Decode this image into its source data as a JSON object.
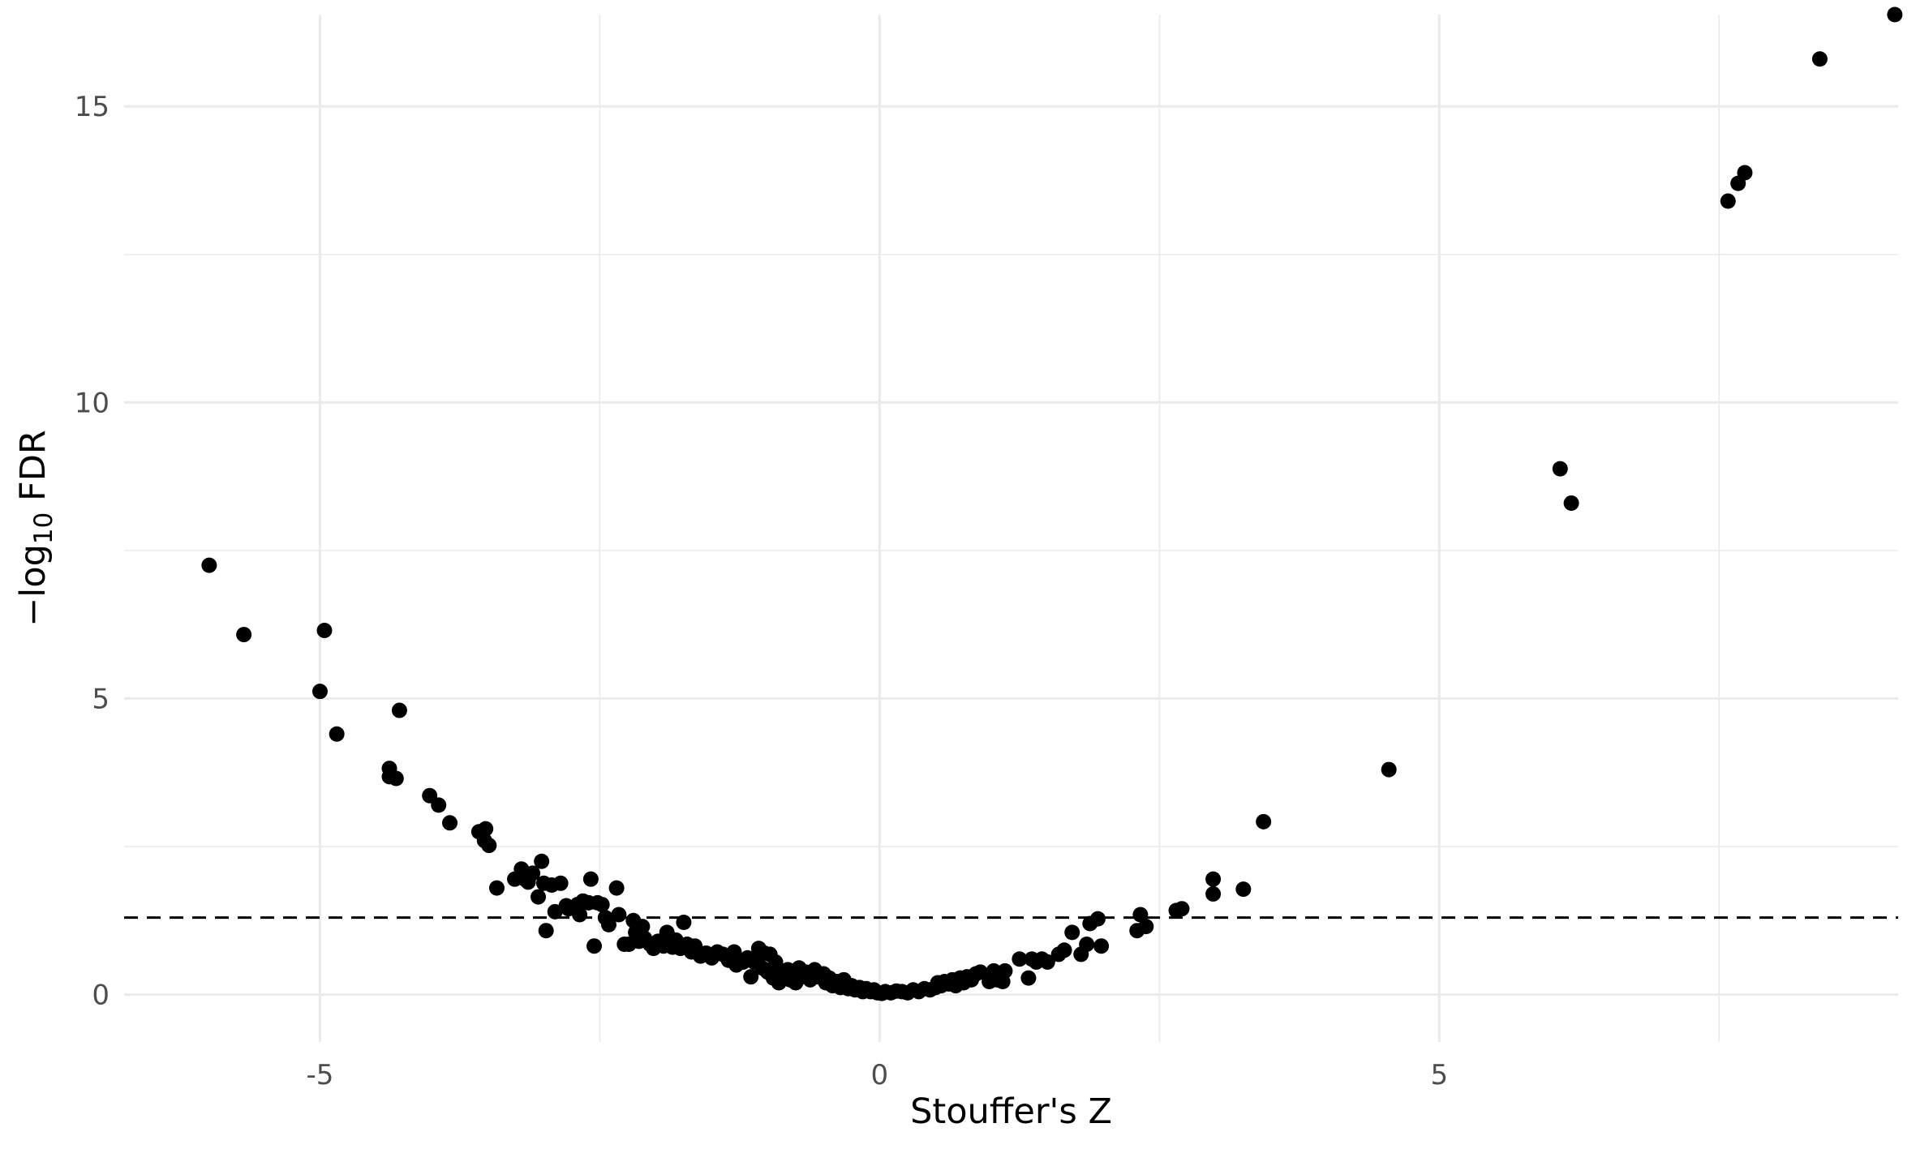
{
  "chart_data": {
    "type": "scatter",
    "title": "",
    "xlabel": "Stouffer's Z",
    "ylabel": {
      "prefix": "−log",
      "subscript": "10",
      "suffix": " FDR"
    },
    "xlim": [
      -6.75,
      9.1
    ],
    "ylim": [
      -0.8,
      16.55
    ],
    "x_ticks": [
      -5,
      0,
      5
    ],
    "x_tick_labels": [
      "-5",
      "0",
      "5"
    ],
    "x_minor_ticks": [
      -2.5,
      2.5,
      7.5
    ],
    "y_ticks": [
      0,
      5,
      10,
      15
    ],
    "y_tick_labels": [
      "0",
      "5",
      "10",
      "15"
    ],
    "y_minor_ticks": [
      2.5,
      7.5,
      12.5
    ],
    "grid": true,
    "legend": "none",
    "reference_line": {
      "orientation": "horizontal",
      "y": 1.3,
      "style": "dashed"
    },
    "point_color": "#000000",
    "points": [
      {
        "x": -5.99,
        "y": 7.25
      },
      {
        "x": -5.68,
        "y": 6.08
      },
      {
        "x": -4.96,
        "y": 6.15
      },
      {
        "x": -5.0,
        "y": 5.12
      },
      {
        "x": -4.85,
        "y": 4.4
      },
      {
        "x": -4.29,
        "y": 4.8
      },
      {
        "x": -4.38,
        "y": 3.82
      },
      {
        "x": -4.38,
        "y": 3.68
      },
      {
        "x": -4.32,
        "y": 3.65
      },
      {
        "x": -4.02,
        "y": 3.36
      },
      {
        "x": -3.94,
        "y": 3.2
      },
      {
        "x": -3.84,
        "y": 2.9
      },
      {
        "x": -3.58,
        "y": 2.75
      },
      {
        "x": -3.52,
        "y": 2.8
      },
      {
        "x": -3.53,
        "y": 2.6
      },
      {
        "x": -3.49,
        "y": 2.52
      },
      {
        "x": -3.42,
        "y": 1.8
      },
      {
        "x": -3.26,
        "y": 1.95
      },
      {
        "x": -3.2,
        "y": 2.12
      },
      {
        "x": -3.17,
        "y": 1.95
      },
      {
        "x": -3.14,
        "y": 1.9
      },
      {
        "x": -3.1,
        "y": 2.05
      },
      {
        "x": -3.02,
        "y": 2.25
      },
      {
        "x": -3.05,
        "y": 1.65
      },
      {
        "x": -2.98,
        "y": 1.08
      },
      {
        "x": -3.0,
        "y": 1.88
      },
      {
        "x": -2.93,
        "y": 1.85
      },
      {
        "x": -2.85,
        "y": 1.88
      },
      {
        "x": -2.9,
        "y": 1.4
      },
      {
        "x": -2.8,
        "y": 1.5
      },
      {
        "x": -2.78,
        "y": 1.45
      },
      {
        "x": -2.7,
        "y": 1.52
      },
      {
        "x": -2.65,
        "y": 1.58
      },
      {
        "x": -2.68,
        "y": 1.35
      },
      {
        "x": -2.6,
        "y": 1.55
      },
      {
        "x": -2.58,
        "y": 1.95
      },
      {
        "x": -2.55,
        "y": 0.82
      },
      {
        "x": -2.52,
        "y": 1.55
      },
      {
        "x": -2.48,
        "y": 1.52
      },
      {
        "x": -2.45,
        "y": 1.3
      },
      {
        "x": -2.42,
        "y": 1.18
      },
      {
        "x": -2.35,
        "y": 1.8
      },
      {
        "x": -2.33,
        "y": 1.35
      },
      {
        "x": -2.28,
        "y": 0.85
      },
      {
        "x": -2.24,
        "y": 0.85
      },
      {
        "x": -2.2,
        "y": 1.25
      },
      {
        "x": -2.18,
        "y": 1.05
      },
      {
        "x": -2.15,
        "y": 0.9
      },
      {
        "x": -2.12,
        "y": 1.15
      },
      {
        "x": -2.1,
        "y": 0.95
      },
      {
        "x": -2.05,
        "y": 0.85
      },
      {
        "x": -2.02,
        "y": 0.78
      },
      {
        "x": -1.98,
        "y": 0.9
      },
      {
        "x": -1.93,
        "y": 0.82
      },
      {
        "x": -1.9,
        "y": 1.05
      },
      {
        "x": -1.85,
        "y": 0.8
      },
      {
        "x": -1.82,
        "y": 0.92
      },
      {
        "x": -1.78,
        "y": 0.78
      },
      {
        "x": -1.75,
        "y": 1.22
      },
      {
        "x": -1.72,
        "y": 0.85
      },
      {
        "x": -1.68,
        "y": 0.72
      },
      {
        "x": -1.65,
        "y": 0.82
      },
      {
        "x": -1.6,
        "y": 0.65
      },
      {
        "x": -1.55,
        "y": 0.7
      },
      {
        "x": -1.5,
        "y": 0.62
      },
      {
        "x": -1.45,
        "y": 0.72
      },
      {
        "x": -1.4,
        "y": 0.68
      },
      {
        "x": -1.35,
        "y": 0.58
      },
      {
        "x": -1.3,
        "y": 0.72
      },
      {
        "x": -1.28,
        "y": 0.5
      },
      {
        "x": -1.22,
        "y": 0.55
      },
      {
        "x": -1.18,
        "y": 0.62
      },
      {
        "x": -1.15,
        "y": 0.3
      },
      {
        "x": -1.12,
        "y": 0.55
      },
      {
        "x": -1.08,
        "y": 0.78
      },
      {
        "x": -1.05,
        "y": 0.45
      },
      {
        "x": -1.03,
        "y": 0.7
      },
      {
        "x": -1.0,
        "y": 0.38
      },
      {
        "x": -0.98,
        "y": 0.68
      },
      {
        "x": -0.95,
        "y": 0.28
      },
      {
        "x": -0.93,
        "y": 0.55
      },
      {
        "x": -0.9,
        "y": 0.2
      },
      {
        "x": -0.88,
        "y": 0.38
      },
      {
        "x": -0.85,
        "y": 0.3
      },
      {
        "x": -0.82,
        "y": 0.42
      },
      {
        "x": -0.8,
        "y": 0.25
      },
      {
        "x": -0.78,
        "y": 0.35
      },
      {
        "x": -0.75,
        "y": 0.2
      },
      {
        "x": -0.72,
        "y": 0.45
      },
      {
        "x": -0.7,
        "y": 0.3
      },
      {
        "x": -0.66,
        "y": 0.38
      },
      {
        "x": -0.62,
        "y": 0.25
      },
      {
        "x": -0.58,
        "y": 0.42
      },
      {
        "x": -0.55,
        "y": 0.3
      },
      {
        "x": -0.5,
        "y": 0.35
      },
      {
        "x": -0.48,
        "y": 0.2
      },
      {
        "x": -0.45,
        "y": 0.28
      },
      {
        "x": -0.42,
        "y": 0.15
      },
      {
        "x": -0.38,
        "y": 0.22
      },
      {
        "x": -0.35,
        "y": 0.12
      },
      {
        "x": -0.32,
        "y": 0.25
      },
      {
        "x": -0.3,
        "y": 0.18
      },
      {
        "x": -0.28,
        "y": 0.1
      },
      {
        "x": -0.25,
        "y": 0.15
      },
      {
        "x": -0.22,
        "y": 0.08
      },
      {
        "x": -0.18,
        "y": 0.12
      },
      {
        "x": -0.15,
        "y": 0.05
      },
      {
        "x": -0.12,
        "y": 0.1
      },
      {
        "x": -0.08,
        "y": 0.05
      },
      {
        "x": -0.05,
        "y": 0.08
      },
      {
        "x": -0.02,
        "y": 0.03
      },
      {
        "x": 0.02,
        "y": 0.02
      },
      {
        "x": 0.05,
        "y": 0.05
      },
      {
        "x": 0.1,
        "y": 0.03
      },
      {
        "x": 0.15,
        "y": 0.06
      },
      {
        "x": 0.2,
        "y": 0.05
      },
      {
        "x": 0.25,
        "y": 0.03
      },
      {
        "x": 0.3,
        "y": 0.08
      },
      {
        "x": 0.35,
        "y": 0.05
      },
      {
        "x": 0.4,
        "y": 0.1
      },
      {
        "x": 0.45,
        "y": 0.08
      },
      {
        "x": 0.5,
        "y": 0.12
      },
      {
        "x": 0.52,
        "y": 0.2
      },
      {
        "x": 0.55,
        "y": 0.15
      },
      {
        "x": 0.58,
        "y": 0.22
      },
      {
        "x": 0.62,
        "y": 0.18
      },
      {
        "x": 0.65,
        "y": 0.25
      },
      {
        "x": 0.68,
        "y": 0.15
      },
      {
        "x": 0.72,
        "y": 0.28
      },
      {
        "x": 0.75,
        "y": 0.2
      },
      {
        "x": 0.78,
        "y": 0.3
      },
      {
        "x": 0.82,
        "y": 0.25
      },
      {
        "x": 0.86,
        "y": 0.35
      },
      {
        "x": 0.9,
        "y": 0.38
      },
      {
        "x": 0.98,
        "y": 0.22
      },
      {
        "x": 1.02,
        "y": 0.4
      },
      {
        "x": 1.05,
        "y": 0.25
      },
      {
        "x": 1.1,
        "y": 0.22
      },
      {
        "x": 1.12,
        "y": 0.4
      },
      {
        "x": 1.25,
        "y": 0.6
      },
      {
        "x": 1.33,
        "y": 0.28
      },
      {
        "x": 1.36,
        "y": 0.6
      },
      {
        "x": 1.4,
        "y": 0.55
      },
      {
        "x": 1.45,
        "y": 0.6
      },
      {
        "x": 1.5,
        "y": 0.55
      },
      {
        "x": 1.6,
        "y": 0.68
      },
      {
        "x": 1.65,
        "y": 0.75
      },
      {
        "x": 1.72,
        "y": 1.05
      },
      {
        "x": 1.8,
        "y": 0.68
      },
      {
        "x": 1.85,
        "y": 0.85
      },
      {
        "x": 1.88,
        "y": 1.2
      },
      {
        "x": 1.95,
        "y": 1.28
      },
      {
        "x": 1.98,
        "y": 0.82
      },
      {
        "x": 2.3,
        "y": 1.08
      },
      {
        "x": 2.33,
        "y": 1.35
      },
      {
        "x": 2.38,
        "y": 1.15
      },
      {
        "x": 2.65,
        "y": 1.42
      },
      {
        "x": 2.7,
        "y": 1.45
      },
      {
        "x": 2.98,
        "y": 1.95
      },
      {
        "x": 2.98,
        "y": 1.7
      },
      {
        "x": 3.25,
        "y": 1.78
      },
      {
        "x": 3.43,
        "y": 2.92
      },
      {
        "x": 4.55,
        "y": 3.8
      },
      {
        "x": 6.08,
        "y": 8.88
      },
      {
        "x": 6.18,
        "y": 8.3
      },
      {
        "x": 7.58,
        "y": 13.4
      },
      {
        "x": 7.67,
        "y": 13.7
      },
      {
        "x": 7.73,
        "y": 13.88
      },
      {
        "x": 8.4,
        "y": 15.8
      },
      {
        "x": 9.07,
        "y": 16.55
      }
    ]
  }
}
